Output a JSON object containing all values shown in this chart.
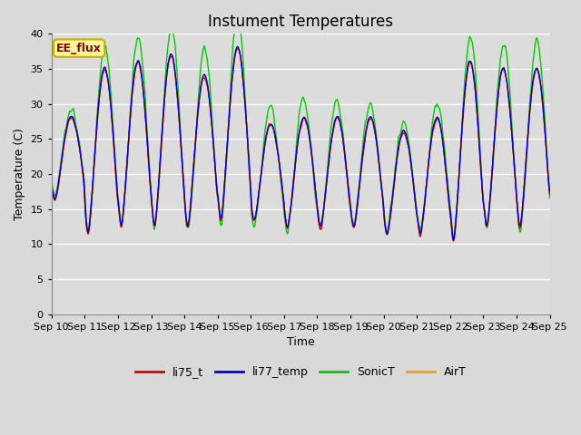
{
  "title": "Instument Temperatures",
  "xlabel": "Time",
  "ylabel": "Temperature (C)",
  "ylim": [
    0,
    40
  ],
  "yticks": [
    0,
    5,
    10,
    15,
    20,
    25,
    30,
    35,
    40
  ],
  "num_days": 15,
  "start_day": 10,
  "colors": {
    "li75_t": "#dd0000",
    "li77_temp": "#0000dd",
    "SonicT": "#00cc00",
    "AirT": "#ff9900"
  },
  "figure_bg": "#d9d9d9",
  "plot_bg": "#dcdcdc",
  "grid_color": "#ffffff",
  "annotation_text": "EE_flux",
  "annotation_fg": "#880000",
  "annotation_bg": "#ffff99",
  "annotation_border": "#ccaa00",
  "title_fontsize": 12,
  "axis_fontsize": 9,
  "tick_fontsize": 8,
  "linewidth": 1.0
}
